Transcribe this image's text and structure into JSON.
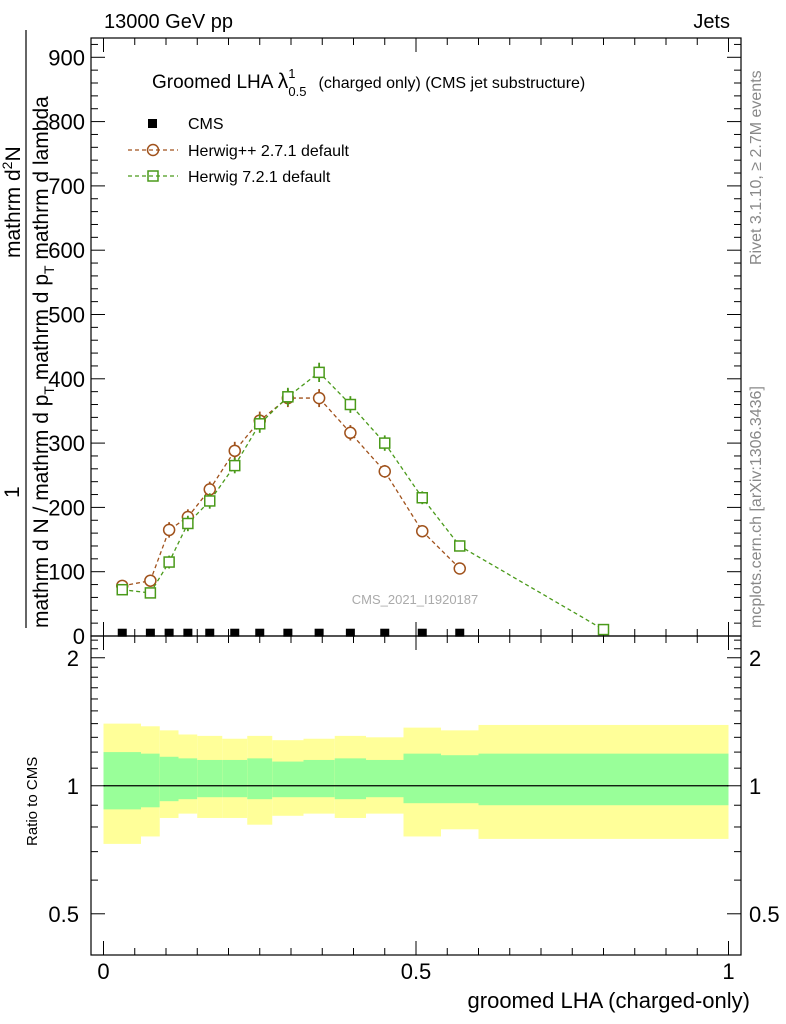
{
  "header": {
    "left": "13000 GeV pp",
    "right": "Jets"
  },
  "plot_title": {
    "main": "Groomed LHA",
    "symbol": "λ",
    "sup": "1",
    "sub": "0.5",
    "rest": "(charged only) (CMS jet substructure)"
  },
  "side_labels": {
    "rivet": "Rivet 3.1.10, ≥ 2.7M events",
    "mcplots": "mcplots.cern.ch [arXiv:1306.3436]"
  },
  "watermark": "CMS_2021_I1920187",
  "axes": {
    "ylabel_main_parts": [
      "1",
      "mathrm d N / mathrm d p",
      "T",
      "mathrm d p",
      "T",
      "mathrm d lambda",
      "mathrm d",
      "2",
      "N",
      "mathrm d p",
      "T",
      "mathrm d lambda"
    ],
    "ylabel_ratio": "Ratio to CMS",
    "xlabel": "groomed LHA (charged-only)"
  },
  "legend": [
    {
      "label": "CMS",
      "color": "#000000",
      "marker": "filled-square"
    },
    {
      "label": "Herwig++ 2.7.1 default",
      "color": "#a0521c",
      "marker": "open-circle"
    },
    {
      "label": "Herwig 7.2.1 default",
      "color": "#4a9a1a",
      "marker": "open-square"
    }
  ],
  "chart_data": [
    {
      "type": "line",
      "panel": "main",
      "xlim": [
        -0.02,
        1.02
      ],
      "ylim": [
        0,
        930
      ],
      "yticks": [
        0,
        100,
        200,
        300,
        400,
        500,
        600,
        700,
        800,
        900
      ],
      "series": [
        {
          "name": "CMS",
          "color": "#000000",
          "x": [
            0.03,
            0.075,
            0.105,
            0.135,
            0.17,
            0.21,
            0.25,
            0.295,
            0.345,
            0.395,
            0.45,
            0.51,
            0.57
          ],
          "y": [
            2,
            2,
            2,
            2,
            2,
            2,
            2,
            2,
            2,
            2,
            2,
            2,
            2
          ]
        },
        {
          "name": "Herwig++ 2.7.1 default",
          "color": "#a0521c",
          "x": [
            0.03,
            0.075,
            0.105,
            0.135,
            0.17,
            0.21,
            0.25,
            0.295,
            0.345,
            0.395,
            0.45,
            0.51,
            0.57
          ],
          "y": [
            78,
            86,
            165,
            185,
            228,
            288,
            335,
            370,
            370,
            316,
            256,
            163,
            105
          ],
          "err": [
            6,
            7,
            12,
            12,
            12,
            14,
            14,
            14,
            14,
            12,
            10,
            8,
            5
          ]
        },
        {
          "name": "Herwig 7.2.1 default",
          "color": "#4a9a1a",
          "x": [
            0.03,
            0.075,
            0.105,
            0.135,
            0.17,
            0.21,
            0.25,
            0.295,
            0.345,
            0.395,
            0.45,
            0.51,
            0.57,
            0.8
          ],
          "y": [
            72,
            67,
            115,
            175,
            210,
            265,
            330,
            372,
            410,
            360,
            300,
            215,
            140,
            10
          ],
          "err": [
            6,
            6,
            10,
            12,
            12,
            12,
            14,
            14,
            15,
            13,
            12,
            10,
            7,
            4
          ]
        }
      ]
    },
    {
      "type": "area",
      "panel": "ratio",
      "xlim": [
        -0.02,
        1.02
      ],
      "ylim": [
        0.4,
        2.25
      ],
      "log_scale": true,
      "yticks": [
        0.5,
        1,
        2
      ],
      "bin_edges": [
        0.0,
        0.06,
        0.09,
        0.12,
        0.15,
        0.19,
        0.23,
        0.27,
        0.32,
        0.37,
        0.42,
        0.48,
        0.54,
        0.6,
        1.0
      ],
      "outer_band": {
        "color": "#ffff99",
        "lo": [
          0.73,
          0.76,
          0.84,
          0.86,
          0.84,
          0.84,
          0.81,
          0.85,
          0.86,
          0.84,
          0.86,
          0.76,
          0.79,
          0.75
        ],
        "hi": [
          1.4,
          1.38,
          1.35,
          1.32,
          1.31,
          1.29,
          1.31,
          1.28,
          1.29,
          1.31,
          1.3,
          1.37,
          1.35,
          1.39
        ]
      },
      "inner_band": {
        "color": "#99ff99",
        "lo": [
          0.88,
          0.89,
          0.92,
          0.93,
          0.94,
          0.94,
          0.93,
          0.94,
          0.94,
          0.93,
          0.94,
          0.91,
          0.91,
          0.9
        ],
        "hi": [
          1.2,
          1.19,
          1.17,
          1.16,
          1.15,
          1.15,
          1.16,
          1.14,
          1.15,
          1.16,
          1.15,
          1.19,
          1.18,
          1.19
        ]
      },
      "reference_line": 1
    }
  ],
  "xaxis_ticks": [
    0,
    0.5,
    1
  ]
}
